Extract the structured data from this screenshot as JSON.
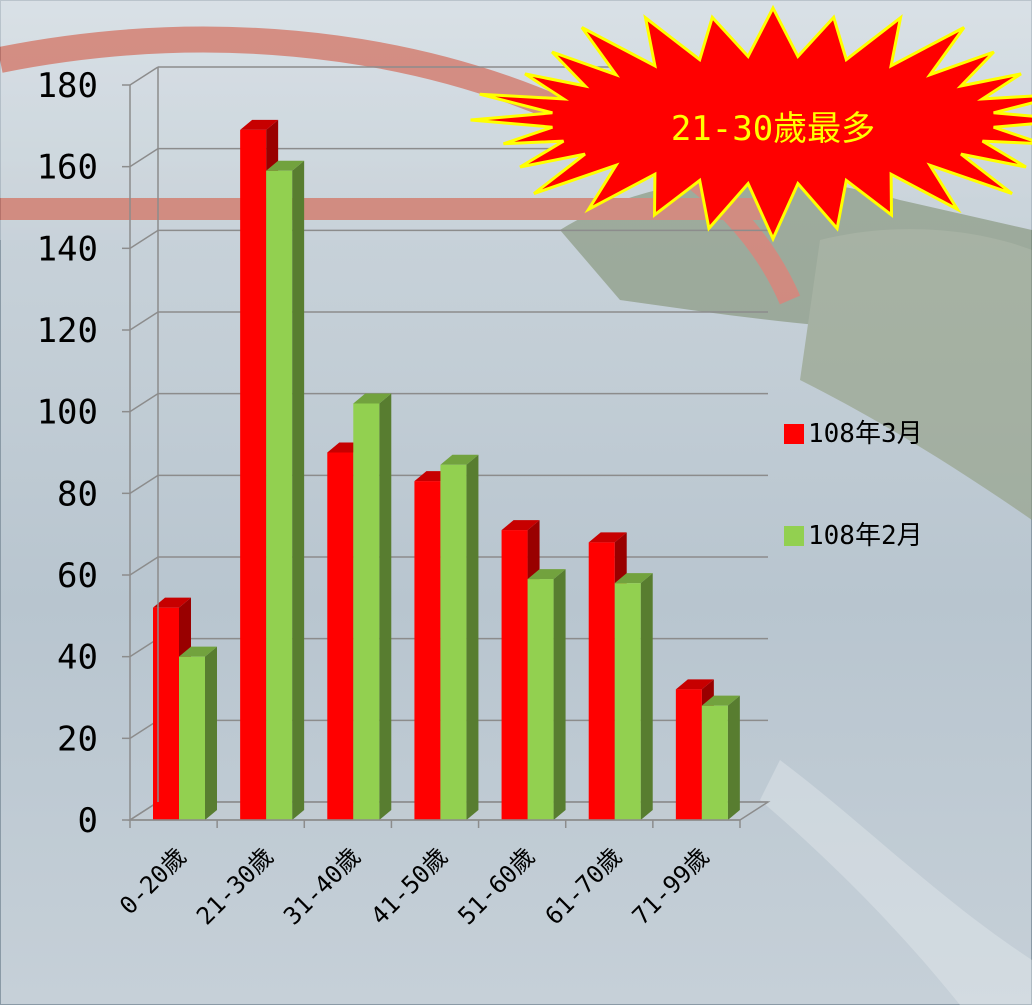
{
  "chart_data": {
    "type": "bar",
    "categories": [
      "0-20歲",
      "21-30歲",
      "31-40歲",
      "41-50歲",
      "51-60歲",
      "61-70歲",
      "71-99歲"
    ],
    "series": [
      {
        "name": "108年3月",
        "color": "#ff0000",
        "values": [
          52,
          169,
          90,
          83,
          71,
          68,
          32
        ]
      },
      {
        "name": "108年2月",
        "color": "#92d050",
        "values": [
          40,
          159,
          102,
          87,
          59,
          58,
          28
        ]
      }
    ],
    "ylim": [
      0,
      180
    ],
    "yticks": [
      0,
      20,
      40,
      60,
      80,
      100,
      120,
      140,
      160,
      180
    ],
    "grid": true,
    "legend_position": "right",
    "annotation": "21-30歲最多"
  }
}
